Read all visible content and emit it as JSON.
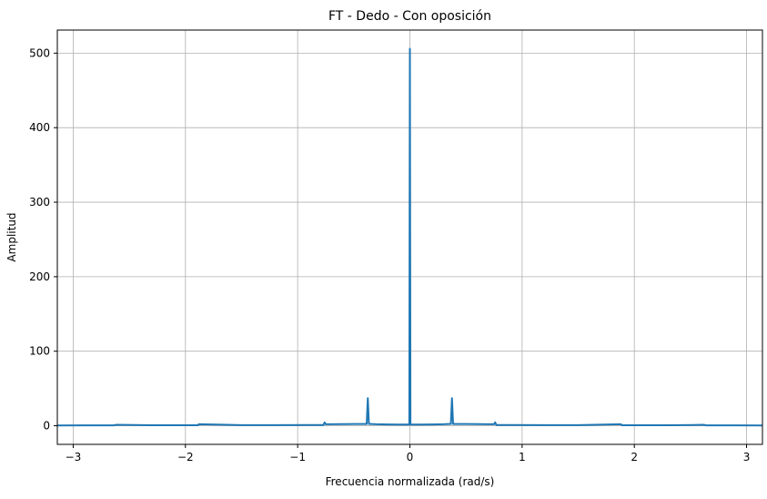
{
  "chart_data": {
    "type": "line",
    "title": "FT - Dedo - Con oposición",
    "xlabel": "Frecuencia normalizada (rad/s)",
    "ylabel": "Amplitud",
    "xlim": [
      -3.1416,
      3.1416
    ],
    "ylim": [
      -25,
      531
    ],
    "xticks": [
      -3,
      -2,
      -1,
      0,
      1,
      2,
      3
    ],
    "xtick_labels": [
      "−3",
      "−2",
      "−1",
      "0",
      "1",
      "2",
      "3"
    ],
    "yticks": [
      0,
      100,
      200,
      300,
      400,
      500
    ],
    "ytick_labels": [
      "0",
      "100",
      "200",
      "300",
      "400",
      "500"
    ],
    "grid": true,
    "color": "#1f77b4",
    "series": [
      {
        "x": [
          -3.1416,
          -2.9,
          -2.64,
          -2.62,
          -2.3,
          -1.89,
          -1.88,
          -1.5,
          -1.2,
          -0.9,
          -0.77,
          -0.76,
          -0.75,
          -0.7,
          -0.6,
          -0.5,
          -0.4,
          -0.385,
          -0.375,
          -0.365,
          -0.35,
          -0.3,
          -0.2,
          -0.1,
          -0.02,
          -0.005,
          0,
          0.005,
          0.02,
          0.1,
          0.2,
          0.3,
          0.35,
          0.365,
          0.375,
          0.385,
          0.4,
          0.5,
          0.6,
          0.7,
          0.75,
          0.76,
          0.77,
          0.9,
          1.2,
          1.5,
          1.88,
          1.89,
          2.3,
          2.62,
          2.64,
          2.9,
          3.1416
        ],
        "y": [
          0.3,
          0.5,
          0.5,
          1.2,
          0.6,
          0.6,
          2.0,
          0.8,
          0.8,
          1.0,
          1.0,
          4.5,
          2.0,
          2.0,
          2.2,
          2.3,
          2.3,
          2.3,
          37,
          2.3,
          2.3,
          2.0,
          1.8,
          1.6,
          1.5,
          1.5,
          506,
          1.5,
          1.5,
          1.6,
          1.8,
          2.0,
          2.3,
          2.3,
          37,
          2.3,
          2.3,
          2.3,
          2.2,
          2.0,
          2.0,
          4.5,
          1.0,
          1.0,
          0.8,
          0.8,
          2.0,
          0.6,
          0.6,
          1.2,
          0.5,
          0.5,
          0.3
        ]
      }
    ]
  }
}
